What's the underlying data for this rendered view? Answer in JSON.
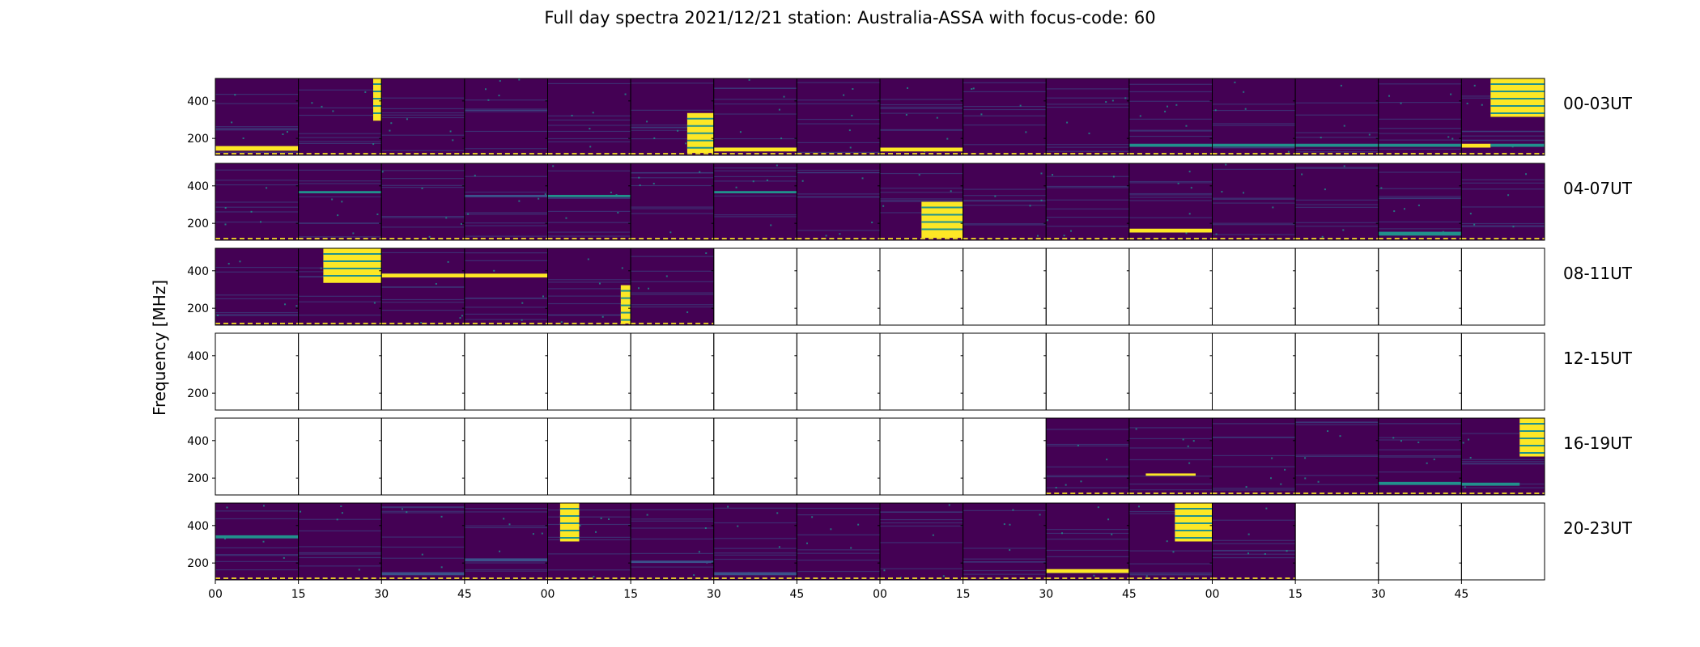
{
  "title": "Full day spectra 2021/12/21 station: Australia-ASSA with focus-code: 60",
  "chart_data": {
    "type": "heatmap",
    "title": "Full day spectra 2021/12/21 station: Australia-ASSA with focus-code: 60",
    "xlabel": "",
    "ylabel": "Frequency [MHz]",
    "ylim": [
      110,
      520
    ],
    "yticks": [
      200,
      400
    ],
    "xticks": [
      "00",
      "15",
      "30",
      "45",
      "00",
      "15",
      "30",
      "45",
      "00",
      "15",
      "30",
      "45",
      "00",
      "15",
      "30",
      "45"
    ],
    "colormap": {
      "background": "#440154",
      "low": "#3b528b",
      "mid": "#21918c",
      "high": "#fde725"
    },
    "rows": [
      {
        "label": "00-03UT",
        "panels": [
          {
            "data": true,
            "bursts": [
              {
                "xs": 0.0,
                "xe": 1.0,
                "ys": 0.88,
                "ye": 0.94,
                "c": "#fde725"
              }
            ]
          },
          {
            "data": true,
            "bursts": [
              {
                "xs": 0.9,
                "xe": 1.0,
                "ys": 0.0,
                "ye": 0.55,
                "c": "#fde725"
              }
            ]
          },
          {
            "data": true,
            "bursts": []
          },
          {
            "data": true,
            "bursts": []
          },
          {
            "data": true,
            "bursts": []
          },
          {
            "data": true,
            "bursts": [
              {
                "xs": 0.68,
                "xe": 1.0,
                "ys": 0.45,
                "ye": 0.97,
                "c": "#fde725"
              }
            ]
          },
          {
            "data": true,
            "bursts": [
              {
                "xs": 0.0,
                "xe": 1.0,
                "ys": 0.9,
                "ye": 0.95,
                "c": "#fde725"
              }
            ]
          },
          {
            "data": true,
            "bursts": []
          },
          {
            "data": true,
            "bursts": [
              {
                "xs": 0.0,
                "xe": 1.0,
                "ys": 0.9,
                "ye": 0.95,
                "c": "#fde725"
              }
            ]
          },
          {
            "data": true,
            "bursts": []
          },
          {
            "data": true,
            "bursts": []
          },
          {
            "data": true,
            "bursts": [
              {
                "xs": 0.0,
                "xe": 1.0,
                "ys": 0.85,
                "ye": 0.89,
                "c": "#21918c"
              }
            ]
          },
          {
            "data": true,
            "bursts": [
              {
                "xs": 0.0,
                "xe": 1.0,
                "ys": 0.85,
                "ye": 0.89,
                "c": "#21918c"
              }
            ]
          },
          {
            "data": true,
            "bursts": [
              {
                "xs": 0.0,
                "xe": 1.0,
                "ys": 0.85,
                "ye": 0.89,
                "c": "#21918c"
              }
            ]
          },
          {
            "data": true,
            "bursts": [
              {
                "xs": 0.0,
                "xe": 1.0,
                "ys": 0.85,
                "ye": 0.89,
                "c": "#21918c"
              }
            ]
          },
          {
            "data": true,
            "bursts": [
              {
                "xs": 0.0,
                "xe": 0.35,
                "ys": 0.85,
                "ye": 0.9,
                "c": "#fde725"
              },
              {
                "xs": 0.35,
                "xe": 1.0,
                "ys": 0.0,
                "ye": 0.5,
                "c": "#fde725"
              },
              {
                "xs": 0.35,
                "xe": 1.0,
                "ys": 0.85,
                "ye": 0.89,
                "c": "#21918c"
              }
            ]
          }
        ]
      },
      {
        "label": "04-07UT",
        "panels": [
          {
            "data": true,
            "bursts": []
          },
          {
            "data": true,
            "bursts": [
              {
                "xs": 0.0,
                "xe": 1.0,
                "ys": 0.36,
                "ye": 0.39,
                "c": "#21918c"
              }
            ]
          },
          {
            "data": true,
            "bursts": []
          },
          {
            "data": true,
            "bursts": [
              {
                "xs": 0.0,
                "xe": 1.0,
                "ys": 0.41,
                "ye": 0.44,
                "c": "#3b528b"
              }
            ]
          },
          {
            "data": true,
            "bursts": [
              {
                "xs": 0.0,
                "xe": 1.0,
                "ys": 0.41,
                "ye": 0.44,
                "c": "#21918c"
              }
            ]
          },
          {
            "data": true,
            "bursts": []
          },
          {
            "data": true,
            "bursts": [
              {
                "xs": 0.0,
                "xe": 1.0,
                "ys": 0.36,
                "ye": 0.39,
                "c": "#21918c"
              }
            ]
          },
          {
            "data": true,
            "bursts": []
          },
          {
            "data": true,
            "bursts": [
              {
                "xs": 0.5,
                "xe": 1.0,
                "ys": 0.5,
                "ye": 0.97,
                "c": "#fde725"
              }
            ]
          },
          {
            "data": true,
            "bursts": []
          },
          {
            "data": true,
            "bursts": []
          },
          {
            "data": true,
            "bursts": [
              {
                "xs": 0.0,
                "xe": 1.0,
                "ys": 0.85,
                "ye": 0.9,
                "c": "#fde725"
              }
            ]
          },
          {
            "data": true,
            "bursts": []
          },
          {
            "data": true,
            "bursts": []
          },
          {
            "data": true,
            "bursts": [
              {
                "xs": 0.0,
                "xe": 1.0,
                "ys": 0.89,
                "ye": 0.94,
                "c": "#21918c"
              }
            ]
          },
          {
            "data": true,
            "bursts": []
          }
        ]
      },
      {
        "label": "08-11UT",
        "panels": [
          {
            "data": true,
            "bursts": []
          },
          {
            "data": true,
            "bursts": [
              {
                "xs": 0.3,
                "xe": 1.0,
                "ys": 0.0,
                "ye": 0.45,
                "c": "#fde725"
              }
            ]
          },
          {
            "data": true,
            "bursts": [
              {
                "xs": 0.0,
                "xe": 1.0,
                "ys": 0.33,
                "ye": 0.38,
                "c": "#fde725"
              }
            ]
          },
          {
            "data": true,
            "bursts": [
              {
                "xs": 0.0,
                "xe": 1.0,
                "ys": 0.33,
                "ye": 0.38,
                "c": "#fde725"
              }
            ]
          },
          {
            "data": true,
            "bursts": [
              {
                "xs": 0.88,
                "xe": 1.0,
                "ys": 0.48,
                "ye": 0.98,
                "c": "#fde725"
              }
            ]
          },
          {
            "data": true,
            "bursts": []
          },
          {
            "data": false,
            "bursts": []
          },
          {
            "data": false,
            "bursts": []
          },
          {
            "data": false,
            "bursts": []
          },
          {
            "data": false,
            "bursts": []
          },
          {
            "data": false,
            "bursts": []
          },
          {
            "data": false,
            "bursts": []
          },
          {
            "data": false,
            "bursts": []
          },
          {
            "data": false,
            "bursts": []
          },
          {
            "data": false,
            "bursts": []
          },
          {
            "data": false,
            "bursts": []
          }
        ]
      },
      {
        "label": "12-15UT",
        "panels": [
          {
            "data": false,
            "bursts": []
          },
          {
            "data": false,
            "bursts": []
          },
          {
            "data": false,
            "bursts": []
          },
          {
            "data": false,
            "bursts": []
          },
          {
            "data": false,
            "bursts": []
          },
          {
            "data": false,
            "bursts": []
          },
          {
            "data": false,
            "bursts": []
          },
          {
            "data": false,
            "bursts": []
          },
          {
            "data": false,
            "bursts": []
          },
          {
            "data": false,
            "bursts": []
          },
          {
            "data": false,
            "bursts": []
          },
          {
            "data": false,
            "bursts": []
          },
          {
            "data": false,
            "bursts": []
          },
          {
            "data": false,
            "bursts": []
          },
          {
            "data": false,
            "bursts": []
          },
          {
            "data": false,
            "bursts": []
          }
        ]
      },
      {
        "label": "16-19UT",
        "panels": [
          {
            "data": false,
            "bursts": []
          },
          {
            "data": false,
            "bursts": []
          },
          {
            "data": false,
            "bursts": []
          },
          {
            "data": false,
            "bursts": []
          },
          {
            "data": false,
            "bursts": []
          },
          {
            "data": false,
            "bursts": []
          },
          {
            "data": false,
            "bursts": []
          },
          {
            "data": false,
            "bursts": []
          },
          {
            "data": false,
            "bursts": []
          },
          {
            "data": false,
            "bursts": []
          },
          {
            "data": true,
            "bursts": []
          },
          {
            "data": true,
            "bursts": [
              {
                "xs": 0.2,
                "xe": 0.8,
                "ys": 0.72,
                "ye": 0.75,
                "c": "#fde725"
              }
            ]
          },
          {
            "data": true,
            "bursts": []
          },
          {
            "data": true,
            "bursts": []
          },
          {
            "data": true,
            "bursts": [
              {
                "xs": 0.0,
                "xe": 1.0,
                "ys": 0.83,
                "ye": 0.87,
                "c": "#21918c"
              }
            ]
          },
          {
            "data": true,
            "bursts": [
              {
                "xs": 0.0,
                "xe": 0.7,
                "ys": 0.84,
                "ye": 0.88,
                "c": "#21918c"
              },
              {
                "xs": 0.7,
                "xe": 1.0,
                "ys": 0.0,
                "ye": 0.5,
                "c": "#fde725"
              }
            ]
          }
        ]
      },
      {
        "label": "20-23UT",
        "panels": [
          {
            "data": true,
            "bursts": [
              {
                "xs": 0.0,
                "xe": 1.0,
                "ys": 0.42,
                "ye": 0.46,
                "c": "#21918c"
              }
            ]
          },
          {
            "data": true,
            "bursts": []
          },
          {
            "data": true,
            "bursts": [
              {
                "xs": 0.0,
                "xe": 1.0,
                "ys": 0.9,
                "ye": 0.94,
                "c": "#3b528b"
              }
            ]
          },
          {
            "data": true,
            "bursts": [
              {
                "xs": 0.0,
                "xe": 1.0,
                "ys": 0.72,
                "ye": 0.76,
                "c": "#3b528b"
              }
            ]
          },
          {
            "data": true,
            "bursts": [
              {
                "xs": 0.15,
                "xe": 0.38,
                "ys": 0.0,
                "ye": 0.5,
                "c": "#fde725"
              }
            ]
          },
          {
            "data": true,
            "bursts": [
              {
                "xs": 0.0,
                "xe": 1.0,
                "ys": 0.75,
                "ye": 0.78,
                "c": "#3b528b"
              }
            ]
          },
          {
            "data": true,
            "bursts": [
              {
                "xs": 0.0,
                "xe": 1.0,
                "ys": 0.9,
                "ye": 0.94,
                "c": "#3b528b"
              }
            ]
          },
          {
            "data": true,
            "bursts": []
          },
          {
            "data": true,
            "bursts": []
          },
          {
            "data": true,
            "bursts": []
          },
          {
            "data": true,
            "bursts": [
              {
                "xs": 0.0,
                "xe": 1.0,
                "ys": 0.86,
                "ye": 0.91,
                "c": "#fde725"
              }
            ]
          },
          {
            "data": true,
            "bursts": [
              {
                "xs": 0.55,
                "xe": 1.0,
                "ys": 0.0,
                "ye": 0.5,
                "c": "#fde725"
              }
            ]
          },
          {
            "data": true,
            "bursts": []
          },
          {
            "data": false,
            "bursts": []
          },
          {
            "data": false,
            "bursts": []
          },
          {
            "data": false,
            "bursts": []
          }
        ]
      }
    ]
  }
}
